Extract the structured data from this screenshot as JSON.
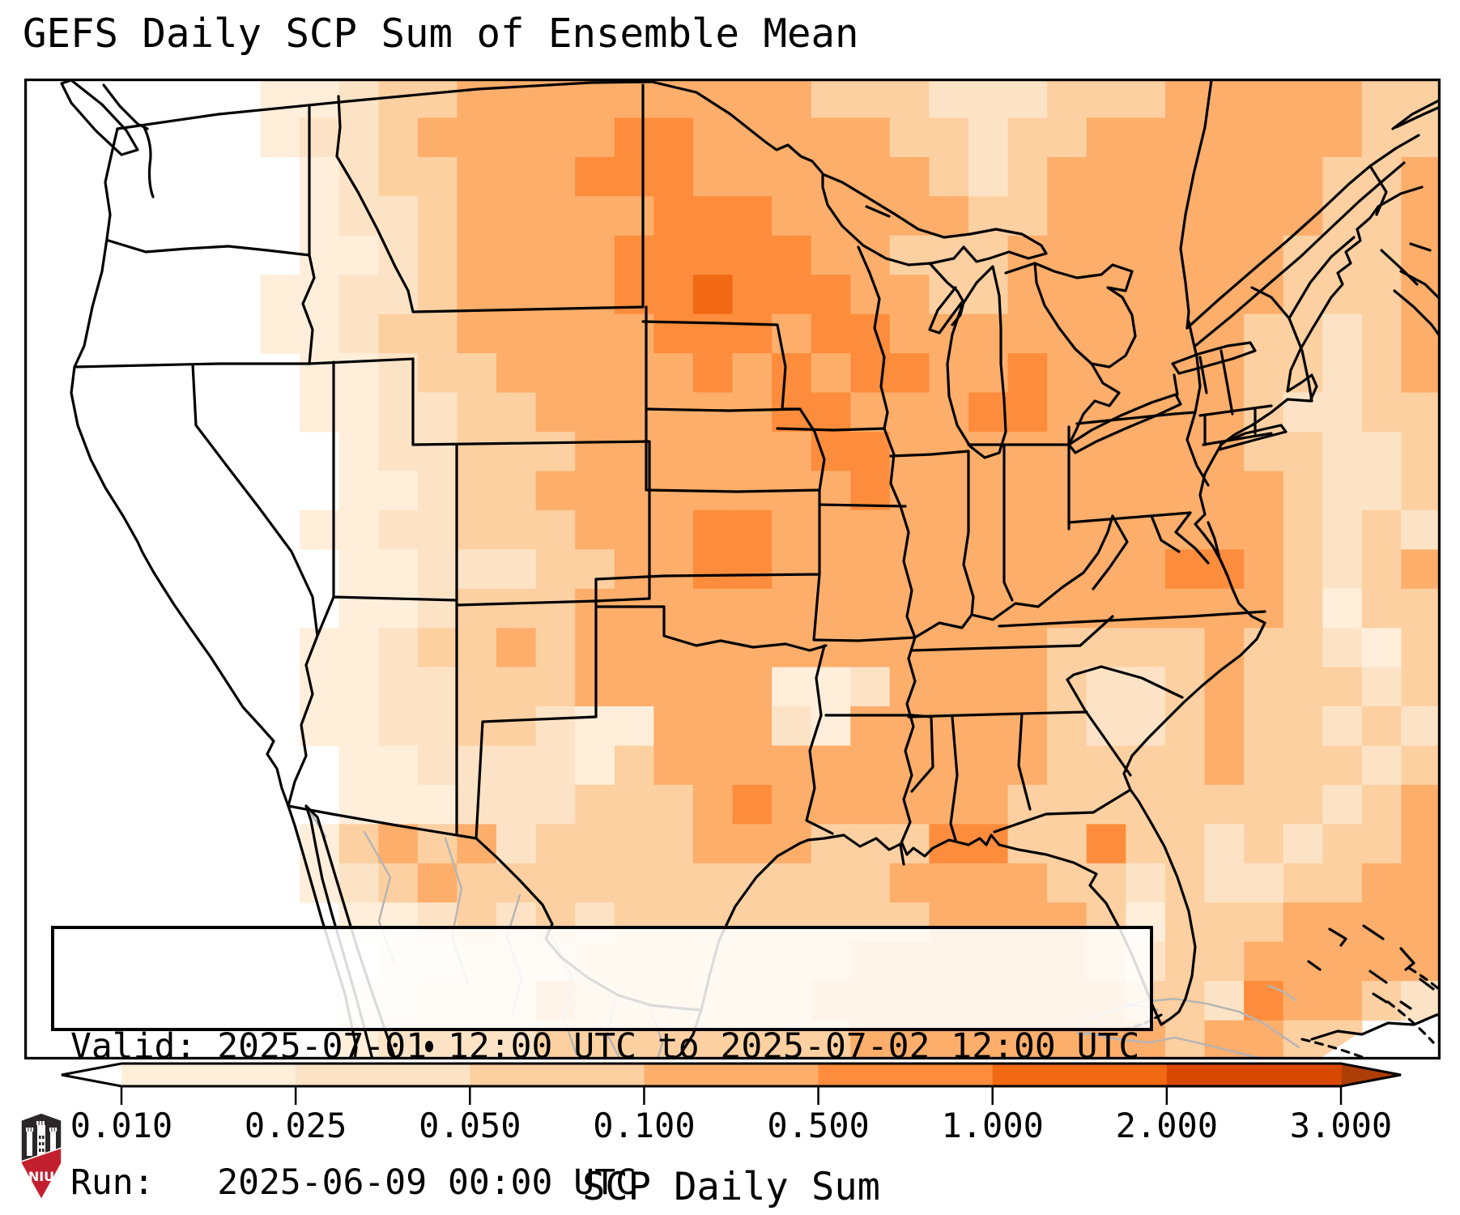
{
  "title": "GEFS Daily SCP Sum of Ensemble Mean",
  "info_box": {
    "valid_label": "Valid:",
    "valid_value": "2025-07-01 12:00 UTC to 2025-07-02 12:00 UTC",
    "run_label": "Run:",
    "run_value": "2025-06-09 00:00 UTC"
  },
  "colorbar": {
    "label": "SCP Daily Sum",
    "ticks": [
      "0.010",
      "0.025",
      "0.050",
      "0.100",
      "0.500",
      "1.000",
      "2.000",
      "3.000"
    ],
    "under_color": "#ffffff",
    "over_color": "#ad3e05",
    "segment_colors": [
      "#feeeda",
      "#fde3c6",
      "#fdd0a2",
      "#fdae6b",
      "#fd8d3c",
      "#f16913",
      "#d94801"
    ],
    "outline_color": "#000000"
  },
  "logo": {
    "label": "NIU",
    "shield_dark": "#2b2728",
    "shield_red": "#c3202f"
  },
  "map": {
    "ocean_color": "#ffffff",
    "state_line_color": "#000000",
    "foreign_line_color": "#b4b4b4",
    "frame_color": "#000000"
  },
  "chart_data": {
    "type": "heatmap",
    "title": "GEFS Daily SCP Sum of Ensemble Mean",
    "variable": "SCP Daily Sum",
    "valid": "2025-07-01 12:00 UTC to 2025-07-02 12:00 UTC",
    "run": "2025-06-09 00:00 UTC",
    "levels": [
      0.01,
      0.025,
      0.05,
      0.1,
      0.5,
      1.0,
      2.0,
      3.0
    ],
    "palette": [
      "#ffffff",
      "#feeeda",
      "#fde3c6",
      "#fdd0a2",
      "#fdae6b",
      "#fd8d3c",
      "#f16913",
      "#d94801",
      "#ad3e05"
    ],
    "legend_extend": "both",
    "grid_cols": 36,
    "grid_rows": 25,
    "grid": [
      "000000112334444444443332223334444433",
      "000000122344444554444433233444444433",
      "000000012334445554444443234444444334",
      "000000012234444455544444334444444334",
      "000000011234444555554433344444443334",
      "000000112234444556555443344444443334",
      "000000112334444455545544444444433234",
      "000000011233444445454554454444433234",
      "000000011223344444455444554444432233",
      "000000001223334444445544444444433223",
      "000000001123344444444544444444443223",
      "000000011223334445544444444444443232",
      "000000001122233445544444444445543234",
      "000000001123334444444444444444443133",
      "000000011233434444444444443333433213",
      "000000011223334444411244443223433323",
      "000000011223321144421444443223433232",
      "000000001122221344444444443333433323",
      "000000001112223334544444433333333234",
      "000000013434233334443335533533232334",
      "000000012343333333333344443323223344",
      "000000001123232333333334444313334444",
      "000000000112223333333444444323344444",
      "000000001122243333334444444433254432",
      "000000001222233333333444444443443300"
    ]
  }
}
